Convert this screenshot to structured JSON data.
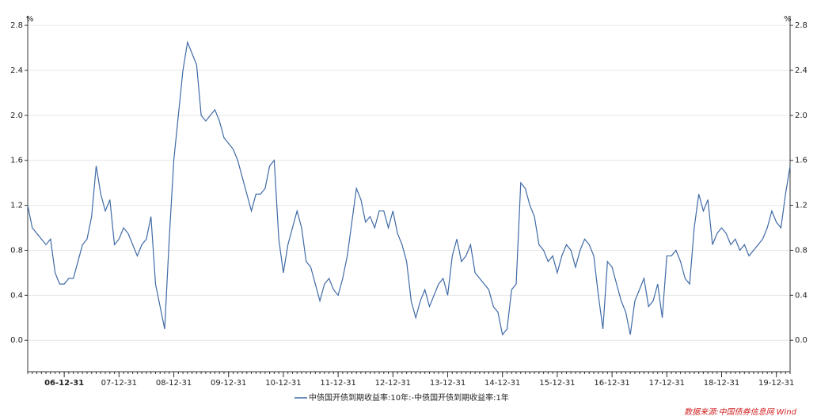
{
  "chart_data": {
    "type": "line",
    "y_unit": "%",
    "source": "数据来源:中国债券信息网 Wind",
    "ylim": [
      -0.28,
      2.85
    ],
    "yticks": [
      {
        "value": 0,
        "label": "0.0"
      },
      0.4,
      0.8,
      1.2,
      1.6,
      {
        "value": 2,
        "label": "2.0"
      },
      2.4,
      2.8
    ],
    "xlim": [
      0,
      167
    ],
    "xticks": [
      {
        "value": 8,
        "label": "06-12-31"
      },
      {
        "value": 20,
        "label": "07-12-31"
      },
      {
        "value": 32,
        "label": "08-12-31"
      },
      {
        "value": 44,
        "label": "09-12-31"
      },
      {
        "value": 56,
        "label": "10-12-31"
      },
      {
        "value": 68,
        "label": "11-12-31"
      },
      {
        "value": 80,
        "label": "12-12-31"
      },
      {
        "value": 92,
        "label": "13-12-31"
      },
      {
        "value": 104,
        "label": "14-12-31"
      },
      {
        "value": 116,
        "label": "15-12-31"
      },
      {
        "value": 128,
        "label": "16-12-31"
      },
      {
        "value": 140,
        "label": "17-12-31"
      },
      {
        "value": 152,
        "label": "18-12-31"
      },
      {
        "value": 164,
        "label": "19-12-31"
      }
    ],
    "grid": true,
    "series": [
      {
        "name": "中债国开债到期收益率:10年:-中债国开债到期收益率:1年",
        "color": "#3f6aa6",
        "values": [
          1.2,
          1.0,
          0.95,
          0.9,
          0.85,
          0.9,
          0.6,
          0.5,
          0.5,
          0.55,
          0.55,
          0.7,
          0.85,
          0.9,
          1.1,
          1.55,
          1.3,
          1.15,
          1.25,
          0.85,
          0.9,
          1.0,
          0.95,
          0.85,
          0.75,
          0.85,
          0.9,
          1.1,
          0.5,
          0.3,
          0.1,
          0.9,
          1.6,
          2.0,
          2.4,
          2.65,
          2.55,
          2.45,
          2.0,
          1.95,
          2.0,
          2.05,
          1.95,
          1.8,
          1.75,
          1.7,
          1.6,
          1.45,
          1.3,
          1.15,
          1.3,
          1.3,
          1.35,
          1.55,
          1.6,
          0.9,
          0.6,
          0.85,
          1.0,
          1.15,
          1.0,
          0.7,
          0.65,
          0.5,
          0.35,
          0.5,
          0.55,
          0.45,
          0.4,
          0.55,
          0.75,
          1.05,
          1.35,
          1.25,
          1.05,
          1.1,
          1.0,
          1.15,
          1.15,
          1.0,
          1.15,
          0.95,
          0.85,
          0.7,
          0.35,
          0.2,
          0.35,
          0.45,
          0.3,
          0.4,
          0.5,
          0.55,
          0.4,
          0.75,
          0.9,
          0.7,
          0.75,
          0.85,
          0.6,
          0.55,
          0.5,
          0.45,
          0.3,
          0.25,
          0.05,
          0.1,
          0.45,
          0.5,
          1.4,
          1.35,
          1.2,
          1.1,
          0.85,
          0.8,
          0.7,
          0.75,
          0.6,
          0.75,
          0.85,
          0.8,
          0.65,
          0.8,
          0.9,
          0.85,
          0.75,
          0.4,
          0.1,
          0.7,
          0.65,
          0.5,
          0.35,
          0.25,
          0.05,
          0.35,
          0.45,
          0.55,
          0.3,
          0.35,
          0.5,
          0.2,
          0.75,
          0.75,
          0.8,
          0.7,
          0.55,
          0.5,
          1.0,
          1.3,
          1.15,
          1.25,
          0.85,
          0.95,
          1.0,
          0.95,
          0.85,
          0.9,
          0.8,
          0.85,
          0.75,
          0.8,
          0.85,
          0.9,
          1.0,
          1.15,
          1.05,
          1.0,
          1.3,
          1.55
        ]
      }
    ]
  }
}
